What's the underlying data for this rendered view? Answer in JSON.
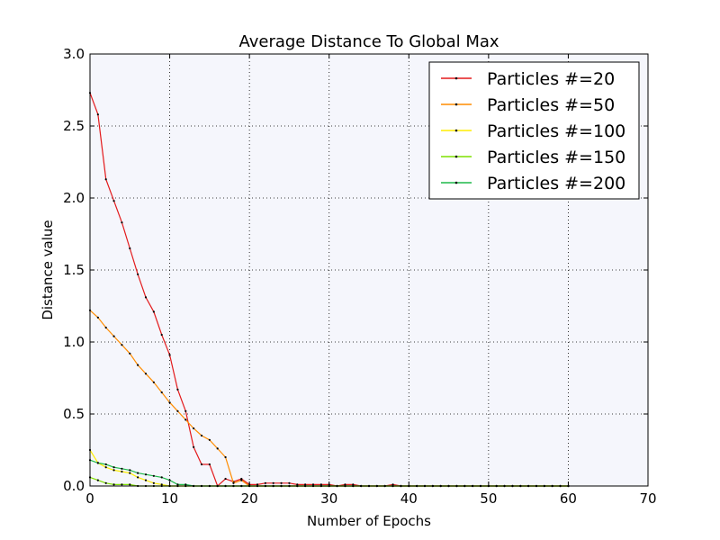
{
  "chart_data": {
    "type": "line",
    "title": "Average Distance To Global Max",
    "xlabel": "Number of Epochs",
    "ylabel": "Distance value",
    "xlim": [
      0,
      70
    ],
    "ylim": [
      0,
      3.0
    ],
    "xticks": [
      "0",
      "10",
      "20",
      "30",
      "40",
      "50",
      "60",
      "70"
    ],
    "yticks": [
      "0.0",
      "0.5",
      "1.0",
      "1.5",
      "2.0",
      "2.5",
      "3.0"
    ],
    "grid": true,
    "legend_position": "top-right",
    "plot_background": "#f5f6fc",
    "series": [
      {
        "name": "Particles #=20",
        "color": "#e31a1c",
        "x": [
          0,
          1,
          2,
          3,
          4,
          5,
          6,
          7,
          8,
          9,
          10,
          11,
          12,
          13,
          14,
          15,
          16,
          17,
          18,
          19,
          20,
          21,
          22,
          23,
          24,
          25,
          26,
          27,
          28,
          29,
          30,
          31,
          32,
          33,
          34,
          35,
          36,
          37,
          38,
          39,
          40,
          41,
          42,
          43,
          44,
          45,
          46,
          47,
          48,
          49,
          50,
          51,
          52,
          53,
          54,
          55,
          56,
          57,
          58,
          59,
          60
        ],
        "y": [
          2.73,
          2.58,
          2.13,
          1.98,
          1.83,
          1.65,
          1.47,
          1.31,
          1.21,
          1.05,
          0.91,
          0.67,
          0.52,
          0.27,
          0.15,
          0.15,
          0.0,
          0.05,
          0.03,
          0.05,
          0.01,
          0.01,
          0.02,
          0.02,
          0.02,
          0.02,
          0.01,
          0.01,
          0.01,
          0.01,
          0.01,
          0.0,
          0.01,
          0.01,
          0.0,
          0.0,
          0.0,
          0.0,
          0.01,
          0.0,
          0.0,
          0.0,
          0.0,
          0.0,
          0.0,
          0.0,
          0.0,
          0.0,
          0.0,
          0.0,
          0.0,
          0.0,
          0.0,
          0.0,
          0.0,
          0.0,
          0.0,
          0.0,
          0.0,
          0.0,
          0.0
        ]
      },
      {
        "name": "Particles #=50",
        "color": "#ff8c00",
        "x": [
          0,
          1,
          2,
          3,
          4,
          5,
          6,
          7,
          8,
          9,
          10,
          11,
          12,
          13,
          14,
          15,
          16,
          17,
          18,
          19,
          20,
          21,
          22,
          23,
          24,
          25,
          26,
          27,
          28,
          29,
          30,
          31,
          32,
          33,
          34,
          35,
          36,
          37,
          38,
          39,
          40,
          41,
          42,
          43,
          44,
          45,
          46,
          47,
          48,
          49,
          50,
          51,
          52,
          53,
          54,
          55,
          56,
          57,
          58,
          59,
          60
        ],
        "y": [
          1.22,
          1.17,
          1.1,
          1.04,
          0.98,
          0.92,
          0.84,
          0.78,
          0.72,
          0.65,
          0.58,
          0.52,
          0.46,
          0.4,
          0.35,
          0.32,
          0.26,
          0.2,
          0.02,
          0.04,
          0.0,
          0.0,
          0.0,
          0.0,
          0.0,
          0.0,
          0.0,
          0.0,
          0.0,
          0.0,
          0.0,
          0.0,
          0.0,
          0.0,
          0.0,
          0.0,
          0.0,
          0.0,
          0.0,
          0.0,
          0.0,
          0.0,
          0.0,
          0.0,
          0.0,
          0.0,
          0.0,
          0.0,
          0.0,
          0.0,
          0.0,
          0.0,
          0.0,
          0.0,
          0.0,
          0.0,
          0.0,
          0.0,
          0.0,
          0.0,
          0.0
        ]
      },
      {
        "name": "Particles #=100",
        "color": "#ffee00",
        "x": [
          0,
          1,
          2,
          3,
          4,
          5,
          6,
          7,
          8,
          9,
          10,
          11,
          12,
          13,
          14,
          15,
          16,
          17,
          18,
          19,
          20,
          21,
          22,
          23,
          24,
          25,
          26,
          27,
          28,
          29,
          30,
          31,
          32,
          33,
          34,
          35,
          36,
          37,
          38,
          39,
          40,
          41,
          42,
          43,
          44,
          45,
          46,
          47,
          48,
          49,
          50,
          51,
          52,
          53,
          54,
          55,
          56,
          57,
          58,
          59,
          60
        ],
        "y": [
          0.25,
          0.16,
          0.13,
          0.11,
          0.1,
          0.09,
          0.06,
          0.04,
          0.02,
          0.01,
          0.0,
          0.0,
          0.0,
          0.0,
          0.0,
          0.0,
          0.0,
          0.0,
          0.0,
          0.0,
          0.0,
          0.0,
          0.0,
          0.0,
          0.0,
          0.0,
          0.0,
          0.0,
          0.0,
          0.0,
          0.0,
          0.0,
          0.0,
          0.0,
          0.0,
          0.0,
          0.0,
          0.0,
          0.0,
          0.0,
          0.0,
          0.0,
          0.0,
          0.0,
          0.0,
          0.0,
          0.0,
          0.0,
          0.0,
          0.0,
          0.0,
          0.0,
          0.0,
          0.0,
          0.0,
          0.0,
          0.0,
          0.0,
          0.0,
          0.0,
          0.0
        ]
      },
      {
        "name": "Particles #=150",
        "color": "#7fe000",
        "x": [
          0,
          1,
          2,
          3,
          4,
          5,
          6,
          7,
          8,
          9,
          10,
          11,
          12,
          13,
          14,
          15,
          16,
          17,
          18,
          19,
          20,
          21,
          22,
          23,
          24,
          25,
          26,
          27,
          28,
          29,
          30,
          31,
          32,
          33,
          34,
          35,
          36,
          37,
          38,
          39,
          40,
          41,
          42,
          43,
          44,
          45,
          46,
          47,
          48,
          49,
          50,
          51,
          52,
          53,
          54,
          55,
          56,
          57,
          58,
          59,
          60
        ],
        "y": [
          0.06,
          0.04,
          0.02,
          0.01,
          0.01,
          0.01,
          0.0,
          0.0,
          0.0,
          0.0,
          0.0,
          0.0,
          0.0,
          0.0,
          0.0,
          0.0,
          0.0,
          0.0,
          0.0,
          0.0,
          0.0,
          0.0,
          0.0,
          0.0,
          0.0,
          0.0,
          0.0,
          0.0,
          0.0,
          0.0,
          0.0,
          0.0,
          0.0,
          0.0,
          0.0,
          0.0,
          0.0,
          0.0,
          0.0,
          0.0,
          0.0,
          0.0,
          0.0,
          0.0,
          0.0,
          0.0,
          0.0,
          0.0,
          0.0,
          0.0,
          0.0,
          0.0,
          0.0,
          0.0,
          0.0,
          0.0,
          0.0,
          0.0,
          0.0,
          0.0,
          0.0
        ]
      },
      {
        "name": "Particles #=200",
        "color": "#1fb94a",
        "x": [
          0,
          1,
          2,
          3,
          4,
          5,
          6,
          7,
          8,
          9,
          10,
          11,
          12,
          13,
          14,
          15,
          16,
          17,
          18,
          19,
          20,
          21,
          22,
          23,
          24,
          25,
          26,
          27,
          28,
          29,
          30,
          31,
          32,
          33,
          34,
          35,
          36,
          37,
          38,
          39,
          40,
          41,
          42,
          43,
          44,
          45,
          46,
          47,
          48,
          49,
          50,
          51,
          52,
          53,
          54,
          55,
          56,
          57,
          58,
          59,
          60
        ],
        "y": [
          0.18,
          0.16,
          0.15,
          0.13,
          0.12,
          0.11,
          0.09,
          0.08,
          0.07,
          0.06,
          0.04,
          0.01,
          0.01,
          0.0,
          0.0,
          0.0,
          0.0,
          0.0,
          0.0,
          0.0,
          0.0,
          0.0,
          0.0,
          0.0,
          0.0,
          0.0,
          0.0,
          0.0,
          0.0,
          0.0,
          0.0,
          0.0,
          0.0,
          0.0,
          0.0,
          0.0,
          0.0,
          0.0,
          0.0,
          0.0,
          0.0,
          0.0,
          0.0,
          0.0,
          0.0,
          0.0,
          0.0,
          0.0,
          0.0,
          0.0,
          0.0,
          0.0,
          0.0,
          0.0,
          0.0,
          0.0,
          0.0,
          0.0,
          0.0,
          0.0,
          0.0
        ]
      }
    ]
  }
}
